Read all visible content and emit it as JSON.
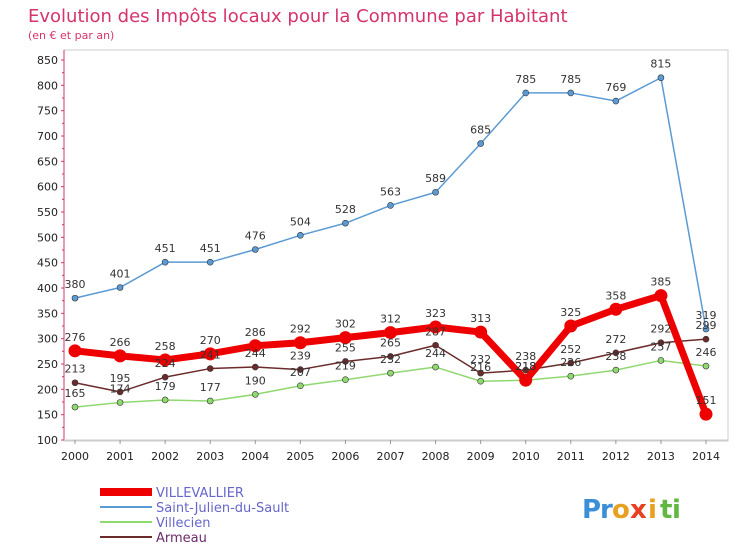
{
  "chart_data": {
    "type": "line",
    "title": "Evolution des Impôts locaux pour la Commune par Habitant",
    "subtitle": "(en € et par an)",
    "x": [
      "2000",
      "2001",
      "2002",
      "2003",
      "2004",
      "2005",
      "2006",
      "2007",
      "2008",
      "2009",
      "2010",
      "2011",
      "2012",
      "2013",
      "2014"
    ],
    "ylim": [
      100,
      850
    ],
    "yticks": [
      100,
      150,
      200,
      250,
      300,
      350,
      400,
      450,
      500,
      550,
      600,
      650,
      700,
      750,
      800,
      850
    ],
    "grid": false,
    "legend_position": "bottom-left",
    "series": [
      {
        "name": "VILLEVALLIER",
        "color": "#ee0000",
        "values": [
          276,
          266,
          258,
          270,
          286,
          292,
          302,
          312,
          323,
          313,
          218,
          325,
          358,
          385,
          151
        ]
      },
      {
        "name": "Saint-Julien-du-Sault",
        "color": "#5b9bd5",
        "values": [
          380,
          401,
          451,
          451,
          476,
          504,
          528,
          563,
          589,
          685,
          785,
          785,
          769,
          815,
          319
        ]
      },
      {
        "name": "Villecien",
        "color": "#90d870",
        "values": [
          165,
          174,
          179,
          177,
          190,
          207,
          219,
          232,
          244,
          216,
          218,
          226,
          238,
          257,
          246
        ]
      },
      {
        "name": "Armeau",
        "color": "#6b2b2b",
        "values": [
          213,
          195,
          224,
          241,
          244,
          239,
          255,
          265,
          287,
          232,
          238,
          252,
          272,
          292,
          299
        ]
      }
    ]
  },
  "brand": {
    "letters": [
      "P",
      "r",
      "o",
      "x",
      "i",
      "t",
      "i"
    ],
    "colors": [
      "#3a8fd6",
      "#3a8fd6",
      "#e8a020",
      "#e84020",
      "#e8a020",
      "#60b840",
      "#60b840"
    ]
  }
}
